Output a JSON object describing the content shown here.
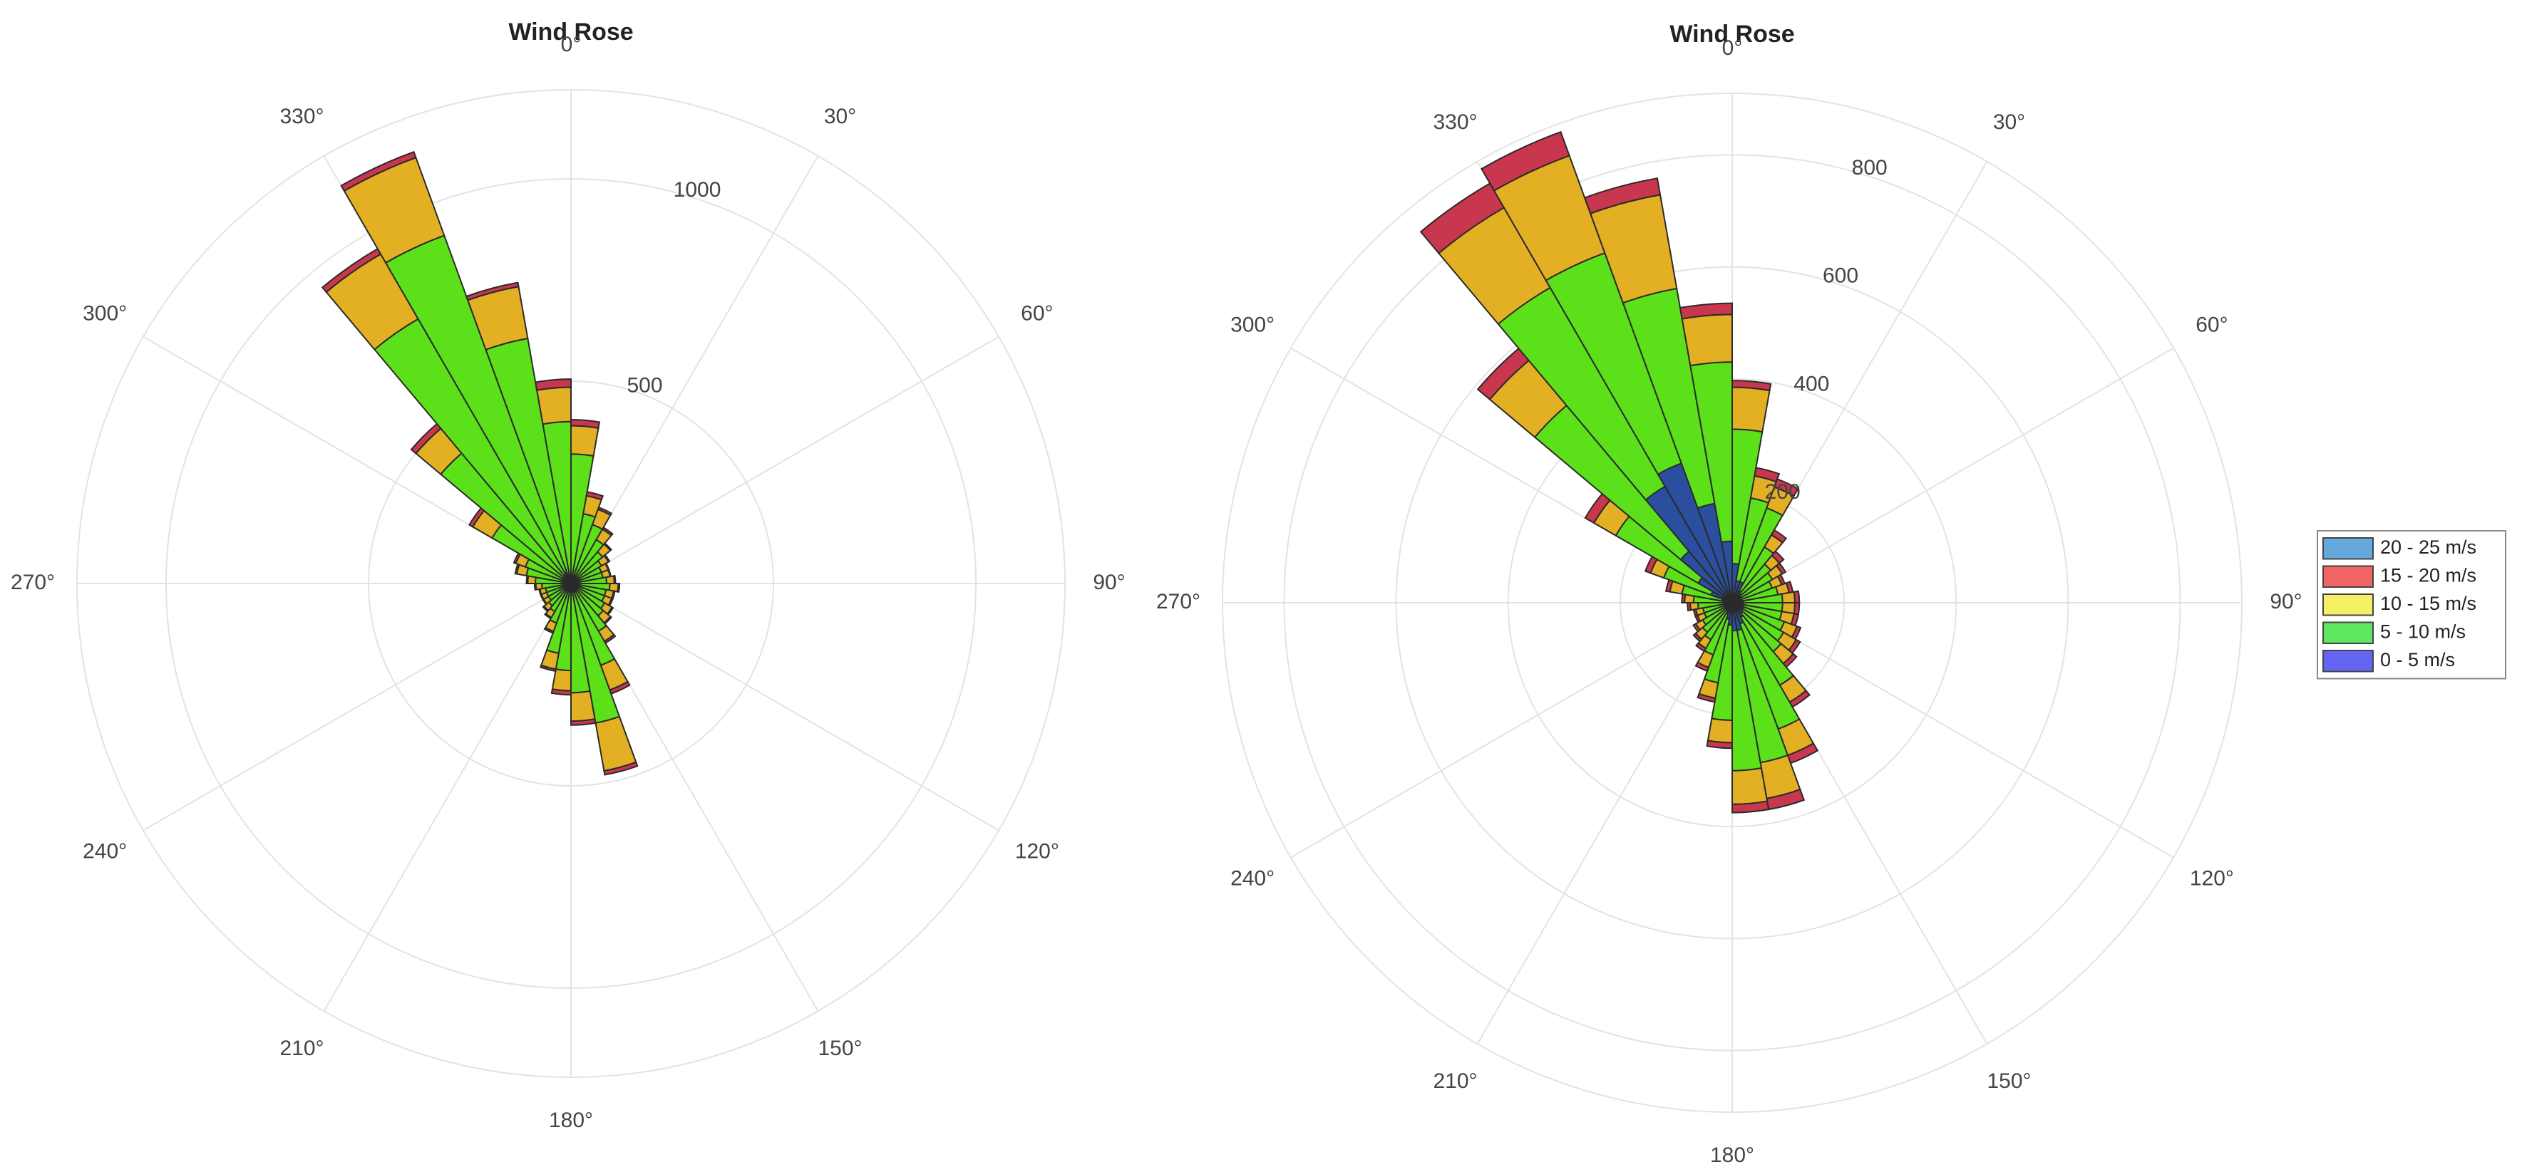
{
  "chart_data": [
    {
      "type": "barpolar",
      "title": "Wind Rose",
      "theta": [
        5,
        15,
        25,
        35,
        45,
        55,
        65,
        75,
        85,
        95,
        105,
        115,
        125,
        135,
        145,
        155,
        165,
        175,
        185,
        195,
        205,
        215,
        225,
        235,
        245,
        255,
        265,
        275,
        285,
        295,
        305,
        315,
        325,
        335,
        345,
        355
      ],
      "series": [
        {
          "color": "#2b4f9e",
          "values": [
            20,
            15,
            15,
            15,
            12,
            12,
            10,
            10,
            11,
            12,
            11,
            11,
            12,
            13,
            17,
            15,
            20,
            20,
            15,
            15,
            13,
            10,
            9,
            8,
            8,
            8,
            9,
            11,
            14,
            15,
            15,
            20,
            25,
            30,
            25,
            20
          ]
        },
        {
          "color": "#5ce01a",
          "values": [
            300,
            160,
            140,
            110,
            90,
            75,
            70,
            70,
            77,
            84,
            77,
            77,
            84,
            91,
            119,
            200,
            330,
            250,
            200,
            160,
            91,
            70,
            63,
            56,
            56,
            56,
            63,
            77,
            98,
            105,
            210,
            400,
            730,
            885,
            590,
            380
          ]
        },
        {
          "color": "#e3b024",
          "values": [
            70,
            45,
            40,
            30,
            25,
            20,
            18,
            18,
            19,
            21,
            19,
            19,
            21,
            23,
            29,
            65,
            120,
            70,
            50,
            40,
            22,
            17,
            15,
            14,
            14,
            14,
            15,
            19,
            24,
            25,
            55,
            80,
            185,
            205,
            130,
            85
          ]
        },
        {
          "color": "#c8374d",
          "values": [
            15,
            10,
            5,
            5,
            3,
            3,
            2,
            2,
            3,
            3,
            3,
            3,
            3,
            3,
            5,
            10,
            10,
            10,
            10,
            5,
            4,
            3,
            3,
            2,
            2,
            2,
            3,
            3,
            4,
            5,
            10,
            15,
            15,
            15,
            10,
            20
          ]
        },
        {
          "color": "#5aa3d6",
          "values": [
            0,
            0,
            0,
            0,
            0,
            0,
            0,
            0,
            0,
            0,
            0,
            0,
            0,
            0,
            0,
            0,
            0,
            0,
            0,
            0,
            0,
            0,
            0,
            0,
            0,
            0,
            0,
            0,
            0,
            0,
            0,
            0,
            0,
            0,
            0,
            0
          ]
        }
      ],
      "rlim": [
        0,
        1220
      ],
      "rticks": [
        500,
        1000
      ],
      "angular_ticks": [
        {
          "value": 0,
          "label": "0°"
        },
        {
          "value": 30,
          "label": "30°"
        },
        {
          "value": 60,
          "label": "60°"
        },
        {
          "value": 90,
          "label": "90°"
        },
        {
          "value": 120,
          "label": "120°"
        },
        {
          "value": 150,
          "label": "150°"
        },
        {
          "value": 180,
          "label": "180°"
        },
        {
          "value": 210,
          "label": "210°"
        },
        {
          "value": 240,
          "label": "240°"
        },
        {
          "value": 270,
          "label": "270°"
        },
        {
          "value": 300,
          "label": "300°"
        },
        {
          "value": 330,
          "label": "330°"
        }
      ],
      "grid": true
    },
    {
      "type": "barpolar",
      "title": "Wind Rose",
      "theta": [
        5,
        15,
        25,
        35,
        45,
        55,
        65,
        75,
        85,
        95,
        105,
        115,
        125,
        135,
        145,
        155,
        165,
        175,
        185,
        195,
        205,
        215,
        225,
        235,
        245,
        255,
        265,
        275,
        285,
        295,
        305,
        315,
        325,
        335,
        345,
        355
      ],
      "series": [
        {
          "name": "0 - 5 m/s",
          "color": "#2b4f9e",
          "legend_color": "#6464f5",
          "values": [
            70,
            40,
            40,
            25,
            20,
            18,
            16,
            18,
            20,
            20,
            20,
            21,
            22,
            24,
            30,
            40,
            50,
            50,
            40,
            30,
            21,
            16,
            15,
            13,
            11,
            11,
            13,
            15,
            19,
            40,
            70,
            120,
            240,
            265,
            180,
            110
          ]
        },
        {
          "name": "5 - 10 m/s",
          "color": "#5ce01a",
          "legend_color": "#5ee85e",
          "values": [
            240,
            150,
            140,
            90,
            70,
            65,
            60,
            65,
            70,
            70,
            70,
            78,
            84,
            90,
            140,
            200,
            240,
            250,
            170,
            115,
            78,
            60,
            54,
            48,
            42,
            42,
            48,
            54,
            72,
            90,
            170,
            340,
            410,
            400,
            390,
            320
          ]
        },
        {
          "name": "10 - 15 m/s",
          "color": "#e3b024",
          "legend_color": "#f5f064",
          "values": [
            75,
            40,
            40,
            25,
            20,
            20,
            18,
            20,
            22,
            22,
            22,
            24,
            26,
            28,
            35,
            50,
            65,
            60,
            40,
            28,
            24,
            18,
            16,
            14,
            13,
            13,
            14,
            16,
            22,
            25,
            45,
            105,
            165,
            185,
            170,
            85
          ]
        },
        {
          "name": "15 - 20 m/s",
          "color": "#c8374d",
          "legend_color": "#f06464",
          "values": [
            12,
            15,
            15,
            10,
            10,
            7,
            6,
            7,
            8,
            8,
            8,
            7,
            8,
            8,
            10,
            15,
            20,
            15,
            10,
            7,
            7,
            6,
            5,
            5,
            4,
            4,
            5,
            5,
            7,
            10,
            18,
            28,
            50,
            45,
            30,
            20
          ]
        },
        {
          "name": "20 - 25 m/s",
          "color": "#5aa3d6",
          "legend_color": "#64a8dc",
          "values": [
            0,
            0,
            0,
            0,
            0,
            0,
            0,
            0,
            0,
            0,
            0,
            0,
            0,
            0,
            0,
            0,
            0,
            0,
            0,
            0,
            0,
            0,
            0,
            0,
            0,
            0,
            0,
            0,
            0,
            0,
            0,
            0,
            0,
            0,
            0,
            0
          ]
        }
      ],
      "rlim": [
        0,
        910
      ],
      "rticks": [
        200,
        400,
        600,
        800
      ],
      "angular_ticks": [
        {
          "value": 0,
          "label": "0°"
        },
        {
          "value": 30,
          "label": "30°"
        },
        {
          "value": 60,
          "label": "60°"
        },
        {
          "value": 90,
          "label": "90°"
        },
        {
          "value": 120,
          "label": "120°"
        },
        {
          "value": 150,
          "label": "150°"
        },
        {
          "value": 180,
          "label": "180°"
        },
        {
          "value": 210,
          "label": "210°"
        },
        {
          "value": 240,
          "label": "240°"
        },
        {
          "value": 270,
          "label": "270°"
        },
        {
          "value": 300,
          "label": "300°"
        },
        {
          "value": 330,
          "label": "330°"
        }
      ],
      "grid": true,
      "legend": "right"
    }
  ]
}
